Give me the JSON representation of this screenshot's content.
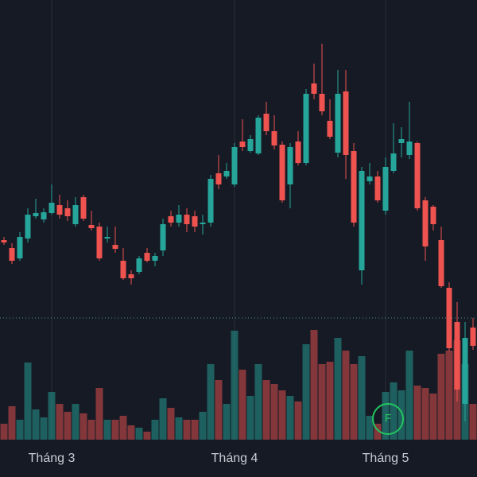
{
  "chart_data": {
    "type": "candlestick",
    "categories": [
      null,
      null,
      null,
      null,
      null,
      null,
      "Tháng 3",
      null,
      null,
      null,
      null,
      null,
      null,
      null,
      null,
      null,
      null,
      null,
      null,
      null,
      null,
      null,
      null,
      null,
      null,
      null,
      null,
      null,
      null,
      "Tháng 4",
      null,
      null,
      null,
      null,
      null,
      null,
      null,
      null,
      null,
      null,
      null,
      null,
      null,
      null,
      null,
      null,
      null,
      null,
      "Tháng 5",
      null,
      null,
      null,
      null,
      null,
      null,
      null,
      null,
      null,
      null,
      null
    ],
    "open": [
      298,
      288,
      275,
      300,
      328,
      324,
      332,
      342,
      338,
      318,
      352,
      317,
      315,
      300,
      292,
      272,
      255,
      258,
      282,
      272,
      285,
      328,
      320,
      330,
      328,
      318,
      320,
      382,
      378,
      368,
      422,
      410,
      407,
      457,
      435,
      418,
      368,
      422,
      395,
      495,
      482,
      448,
      408,
      485,
      410,
      260,
      372,
      378,
      335,
      385,
      420,
      405,
      420,
      348,
      340,
      298,
      238,
      195,
      92,
      188
    ],
    "high": [
      302,
      294,
      308,
      338,
      350,
      338,
      368,
      355,
      348,
      352,
      355,
      335,
      320,
      315,
      315,
      288,
      260,
      278,
      288,
      282,
      325,
      335,
      342,
      338,
      335,
      330,
      380,
      405,
      395,
      420,
      450,
      430,
      455,
      472,
      455,
      422,
      420,
      435,
      488,
      520,
      545,
      475,
      512,
      512,
      420,
      390,
      395,
      385,
      402,
      445,
      440,
      472,
      422,
      352,
      342,
      315,
      245,
      220,
      195,
      200
    ],
    "low": [
      292,
      268,
      272,
      295,
      325,
      320,
      330,
      325,
      322,
      315,
      322,
      310,
      272,
      295,
      282,
      248,
      242,
      255,
      270,
      265,
      278,
      315,
      315,
      308,
      308,
      305,
      315,
      362,
      375,
      365,
      410,
      408,
      405,
      430,
      412,
      345,
      338,
      392,
      392,
      475,
      455,
      425,
      402,
      375,
      315,
      242,
      368,
      345,
      330,
      382,
      402,
      400,
      335,
      272,
      310,
      238,
      158,
      95,
      70,
      160
    ],
    "close": [
      295,
      272,
      302,
      330,
      332,
      333,
      345,
      330,
      328,
      342,
      325,
      313,
      275,
      302,
      287,
      250,
      250,
      275,
      272,
      278,
      318,
      320,
      330,
      318,
      315,
      320,
      375,
      368,
      385,
      415,
      415,
      425,
      452,
      435,
      417,
      348,
      415,
      395,
      482,
      482,
      460,
      428,
      482,
      405,
      320,
      385,
      378,
      348,
      390,
      407,
      425,
      422,
      338,
      290,
      318,
      240,
      162,
      110,
      175,
      165
    ],
    "volume": [
      20,
      42,
      25,
      97,
      38,
      28,
      60,
      45,
      35,
      45,
      33,
      25,
      65,
      25,
      25,
      30,
      18,
      15,
      10,
      25,
      52,
      40,
      28,
      25,
      25,
      35,
      95,
      75,
      45,
      137,
      88,
      55,
      95,
      75,
      70,
      62,
      55,
      48,
      120,
      138,
      95,
      98,
      128,
      112,
      95,
      105,
      30,
      20,
      60,
      72,
      62,
      112,
      68,
      65,
      58,
      108,
      112,
      125,
      95,
      45
    ],
    "ylim": [
      0,
      600
    ],
    "volume_lim": [
      0,
      140
    ],
    "up_color": "#26a69a",
    "down_color": "#ef5350",
    "price_line": 200,
    "grid": true,
    "annotations": [
      {
        "text": "F",
        "index": 48,
        "color": "#22c55e"
      }
    ]
  }
}
